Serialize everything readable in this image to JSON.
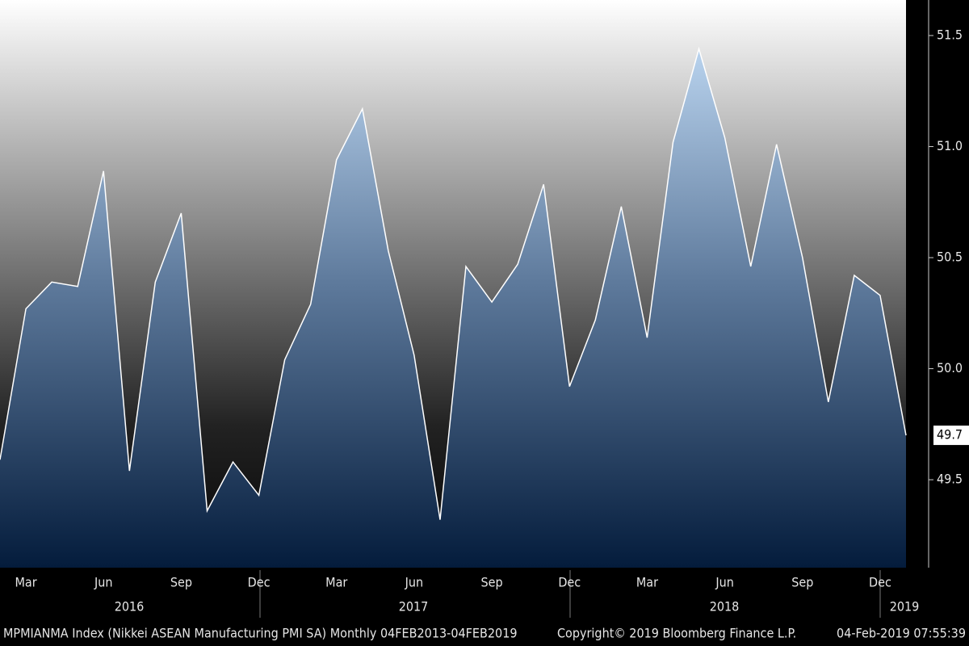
{
  "chart_data": {
    "type": "area",
    "categories": [
      null,
      "Mar",
      null,
      null,
      "Jun",
      null,
      null,
      "Sep",
      null,
      null,
      "Dec",
      null,
      null,
      "Mar",
      null,
      null,
      "Jun",
      null,
      null,
      "Sep",
      null,
      null,
      "Dec",
      null,
      null,
      "Mar",
      null,
      null,
      "Jun",
      null,
      null,
      "Sep",
      null,
      null,
      "Dec",
      null
    ],
    "year_labels": [
      "2016",
      "2017",
      "2018",
      "2019"
    ],
    "series": [
      {
        "name": "MPMIANMA Index",
        "color": "#ffffff",
        "values": [
          49.59,
          50.27,
          50.39,
          50.37,
          50.89,
          49.54,
          50.39,
          50.7,
          49.36,
          49.58,
          49.43,
          50.04,
          50.29,
          50.94,
          51.17,
          50.53,
          50.06,
          49.32,
          50.46,
          50.3,
          50.47,
          50.83,
          49.92,
          50.22,
          50.73,
          50.14,
          51.02,
          51.44,
          51.04,
          50.46,
          51.01,
          50.5,
          49.85,
          50.42,
          50.33,
          49.7
        ],
        "last_label": "49.7"
      }
    ],
    "ylim": [
      49.104,
      51.66
    ],
    "yticks": [
      49.5,
      {
        "value": 50,
        "label": "50.0"
      },
      50.5,
      {
        "value": 51,
        "label": "51.0"
      },
      51.5
    ],
    "footer": {
      "left": "MPMIANMA Index (Nikkei ASEAN Manufacturing PMI SA)  Monthly 04FEB2013-04FEB2019",
      "center": "Copyright© 2019 Bloomberg Finance L.P.",
      "right": "04-Feb-2019 07:55:39"
    }
  }
}
